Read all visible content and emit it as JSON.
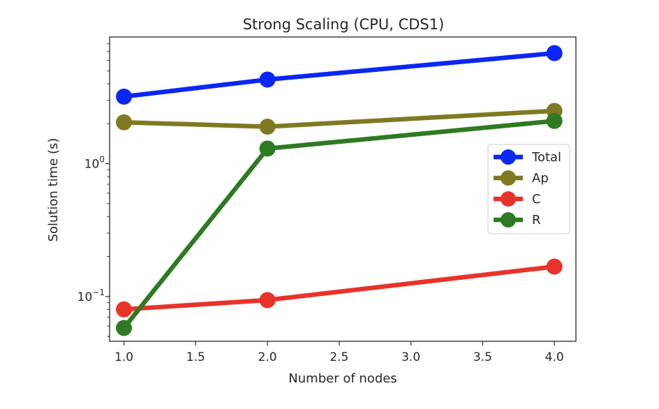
{
  "chart_data": {
    "type": "line",
    "title": "Strong Scaling (CPU, CDS1)",
    "xlabel": "Number of nodes",
    "ylabel": "Solution time (s)",
    "xscale": "linear",
    "yscale": "log",
    "xlim": [
      0.9,
      4.15
    ],
    "ylim": [
      0.046,
      9.0
    ],
    "x": [
      1.0,
      2.0,
      4.0
    ],
    "xticks": [
      {
        "value": 1.0,
        "label": "1.0"
      },
      {
        "value": 1.5,
        "label": "1.5"
      },
      {
        "value": 2.0,
        "label": "2.0"
      },
      {
        "value": 2.5,
        "label": "2.5"
      },
      {
        "value": 3.0,
        "label": "3.0"
      },
      {
        "value": 3.5,
        "label": "3.5"
      },
      {
        "value": 4.0,
        "label": "4.0"
      }
    ],
    "yticks": [
      {
        "value": 0.1,
        "base": "10",
        "exp": "−1"
      },
      {
        "value": 1.0,
        "base": "10",
        "exp": "0"
      }
    ],
    "series": [
      {
        "name": "Total",
        "color": "#0b27f5",
        "values": [
          3.2,
          4.3,
          6.8
        ]
      },
      {
        "name": "Ap",
        "color": "#7f7a22",
        "values": [
          2.05,
          1.9,
          2.5
        ]
      },
      {
        "name": "C",
        "color": "#e8332a",
        "values": [
          0.08,
          0.094,
          0.168
        ]
      },
      {
        "name": "R",
        "color": "#2e7a22",
        "values": [
          0.058,
          1.3,
          2.1
        ]
      }
    ],
    "legend_placement": "right",
    "grid": false
  }
}
